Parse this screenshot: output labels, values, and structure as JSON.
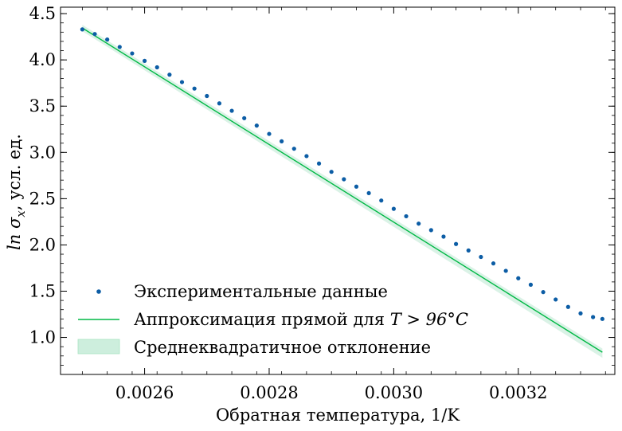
{
  "chart_data": {
    "type": "scatter",
    "xlabel": "Обратная температура, 1/K",
    "ylabel": "ln σ",
    "ylabel_sub": "x",
    "ylabel_suffix": ", усл. ед.",
    "xlim": [
      0.002465,
      0.003355
    ],
    "ylim": [
      0.6,
      4.57
    ],
    "xticks": [
      {
        "value": 0.0026,
        "label": "0.0026"
      },
      {
        "value": 0.0028,
        "label": "0.0028"
      },
      {
        "value": 0.003,
        "label": "0.0030"
      },
      {
        "value": 0.0032,
        "label": "0.0032"
      }
    ],
    "yticks": [
      {
        "value": 1.0,
        "label": "1.0"
      },
      {
        "value": 1.5,
        "label": "1.5"
      },
      {
        "value": 2.0,
        "label": "2.0"
      },
      {
        "value": 2.5,
        "label": "2.5"
      },
      {
        "value": 3.0,
        "label": "3.0"
      },
      {
        "value": 3.5,
        "label": "3.5"
      },
      {
        "value": 4.0,
        "label": "4.0"
      },
      {
        "value": 4.5,
        "label": "4.5"
      }
    ],
    "grid": false,
    "legend_position": "lower-left",
    "colors": {
      "data": "#0c5da5",
      "fit": "#00b945",
      "band": "#cdeedd"
    },
    "series": [
      {
        "name": "Экспериментальные данные",
        "type": "scatter",
        "x": [
          0.0025,
          0.00252,
          0.00254,
          0.00256,
          0.00258,
          0.0026,
          0.00262,
          0.00264,
          0.00266,
          0.00268,
          0.0027,
          0.00272,
          0.00274,
          0.00276,
          0.00278,
          0.0028,
          0.00282,
          0.00284,
          0.00286,
          0.00288,
          0.0029,
          0.00292,
          0.00294,
          0.00296,
          0.00298,
          0.003,
          0.00302,
          0.00304,
          0.00306,
          0.00308,
          0.0031,
          0.00312,
          0.00314,
          0.00316,
          0.00318,
          0.0032,
          0.00322,
          0.00324,
          0.00326,
          0.00328,
          0.0033,
          0.00332,
          0.003335
        ],
        "y": [
          4.33,
          4.28,
          4.22,
          4.14,
          4.07,
          3.99,
          3.92,
          3.84,
          3.76,
          3.69,
          3.61,
          3.53,
          3.45,
          3.37,
          3.29,
          3.2,
          3.12,
          3.04,
          2.96,
          2.88,
          2.79,
          2.71,
          2.63,
          2.56,
          2.48,
          2.39,
          2.31,
          2.23,
          2.16,
          2.09,
          2.01,
          1.94,
          1.87,
          1.8,
          1.72,
          1.64,
          1.57,
          1.49,
          1.41,
          1.33,
          1.26,
          1.22,
          1.2
        ]
      },
      {
        "name": "Аппроксимация прямой для",
        "legend_math": "T > 96°C",
        "type": "line",
        "x": [
          0.0025,
          0.003335
        ],
        "y": [
          4.345,
          0.84
        ]
      },
      {
        "name": "Среднеквадратичное отклонение",
        "type": "area",
        "x": [
          0.0025,
          0.003335
        ],
        "lower": [
          4.31,
          0.78
        ],
        "upper": [
          4.38,
          0.88
        ]
      }
    ]
  }
}
